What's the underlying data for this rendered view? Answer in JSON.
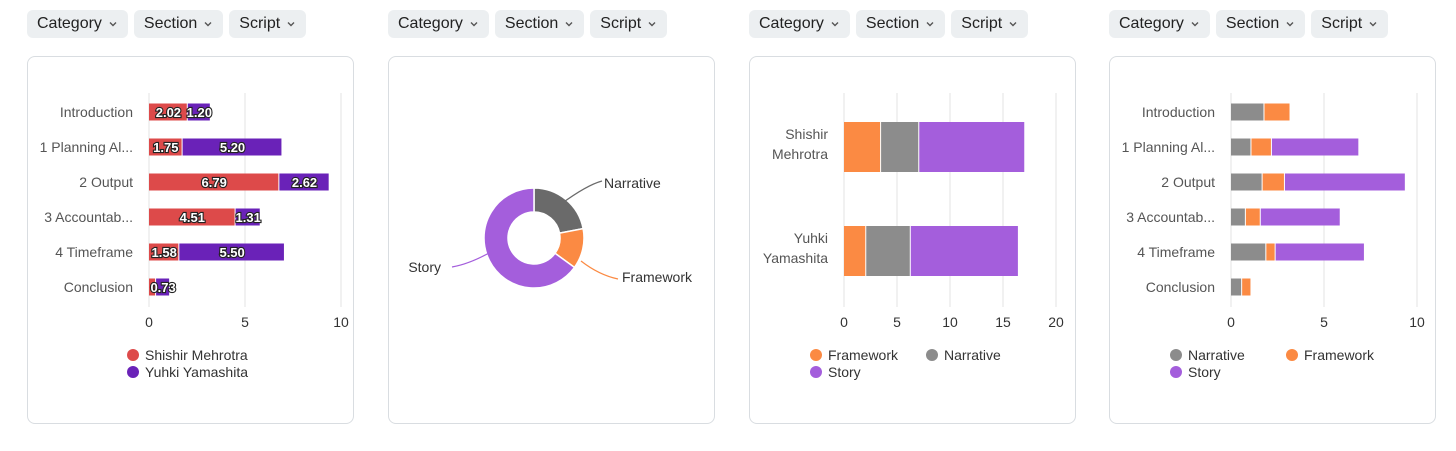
{
  "filters": {
    "category_label": "Category",
    "section_label": "Section",
    "script_label": "Script"
  },
  "colors": {
    "shishir": "#dd4a4a",
    "yuhki": "#6a22b8",
    "framework": "#fb8a43",
    "narrative": "#8c8c8c",
    "story": "#a45edc",
    "narrative_donut": "#6a6a6a"
  },
  "chart_data": [
    {
      "type": "bar",
      "orientation": "horizontal",
      "stacked": true,
      "categories": [
        "Introduction",
        "1 Planning Al...",
        "2 Output",
        "3 Accountab...",
        "4 Timeframe",
        "Conclusion"
      ],
      "series": [
        {
          "name": "Shishir Mehrotra",
          "values": [
            2.02,
            1.75,
            6.79,
            4.51,
            1.58,
            0.37
          ],
          "labels": [
            "2.02",
            "1.75",
            "6.79",
            "4.51",
            "1.58",
            ""
          ]
        },
        {
          "name": "Yuhki Yamashita",
          "values": [
            1.2,
            5.2,
            2.62,
            1.31,
            5.5,
            0.73
          ],
          "labels": [
            "1.20",
            "5.20",
            "2.62",
            "1.31",
            "5.50",
            "0.73"
          ]
        }
      ],
      "xlim": [
        0,
        10
      ],
      "xticks": [
        "0",
        "5",
        "10"
      ],
      "grid": true,
      "legend_position": "bottom"
    },
    {
      "type": "pie",
      "donut": true,
      "slices": [
        {
          "name": "Narrative",
          "value": 22
        },
        {
          "name": "Framework",
          "value": 13
        },
        {
          "name": "Story",
          "value": 65
        }
      ]
    },
    {
      "type": "bar",
      "orientation": "horizontal",
      "stacked": true,
      "categories": [
        "Shishir\nMehrotra",
        "Yuhki\nYamashita"
      ],
      "category_lines": [
        [
          "Shishir",
          "Mehrotra"
        ],
        [
          "Yuhki",
          "Yamashita"
        ]
      ],
      "series": [
        {
          "name": "Framework",
          "values": [
            3.5,
            2.1
          ]
        },
        {
          "name": "Narrative",
          "values": [
            3.6,
            4.2
          ]
        },
        {
          "name": "Story",
          "values": [
            10.0,
            10.2
          ]
        }
      ],
      "xlim": [
        0,
        20
      ],
      "xticks": [
        "0",
        "5",
        "10",
        "15",
        "20"
      ],
      "grid": true,
      "legend_position": "bottom"
    },
    {
      "type": "bar",
      "orientation": "horizontal",
      "stacked": true,
      "categories": [
        "Introduction",
        "1 Planning Al...",
        "2 Output",
        "3 Accountab...",
        "4 Timeframe",
        "Conclusion"
      ],
      "series": [
        {
          "name": "Narrative",
          "values": [
            1.8,
            1.1,
            1.7,
            0.8,
            1.9,
            0.6
          ]
        },
        {
          "name": "Framework",
          "values": [
            1.4,
            1.1,
            1.2,
            0.8,
            0.5,
            0.5
          ]
        },
        {
          "name": "Story",
          "values": [
            0.0,
            4.7,
            6.5,
            4.3,
            4.8,
            0.0
          ]
        }
      ],
      "xlim": [
        0,
        10
      ],
      "xticks": [
        "0",
        "5",
        "10"
      ],
      "grid": true,
      "legend_position": "bottom"
    }
  ]
}
